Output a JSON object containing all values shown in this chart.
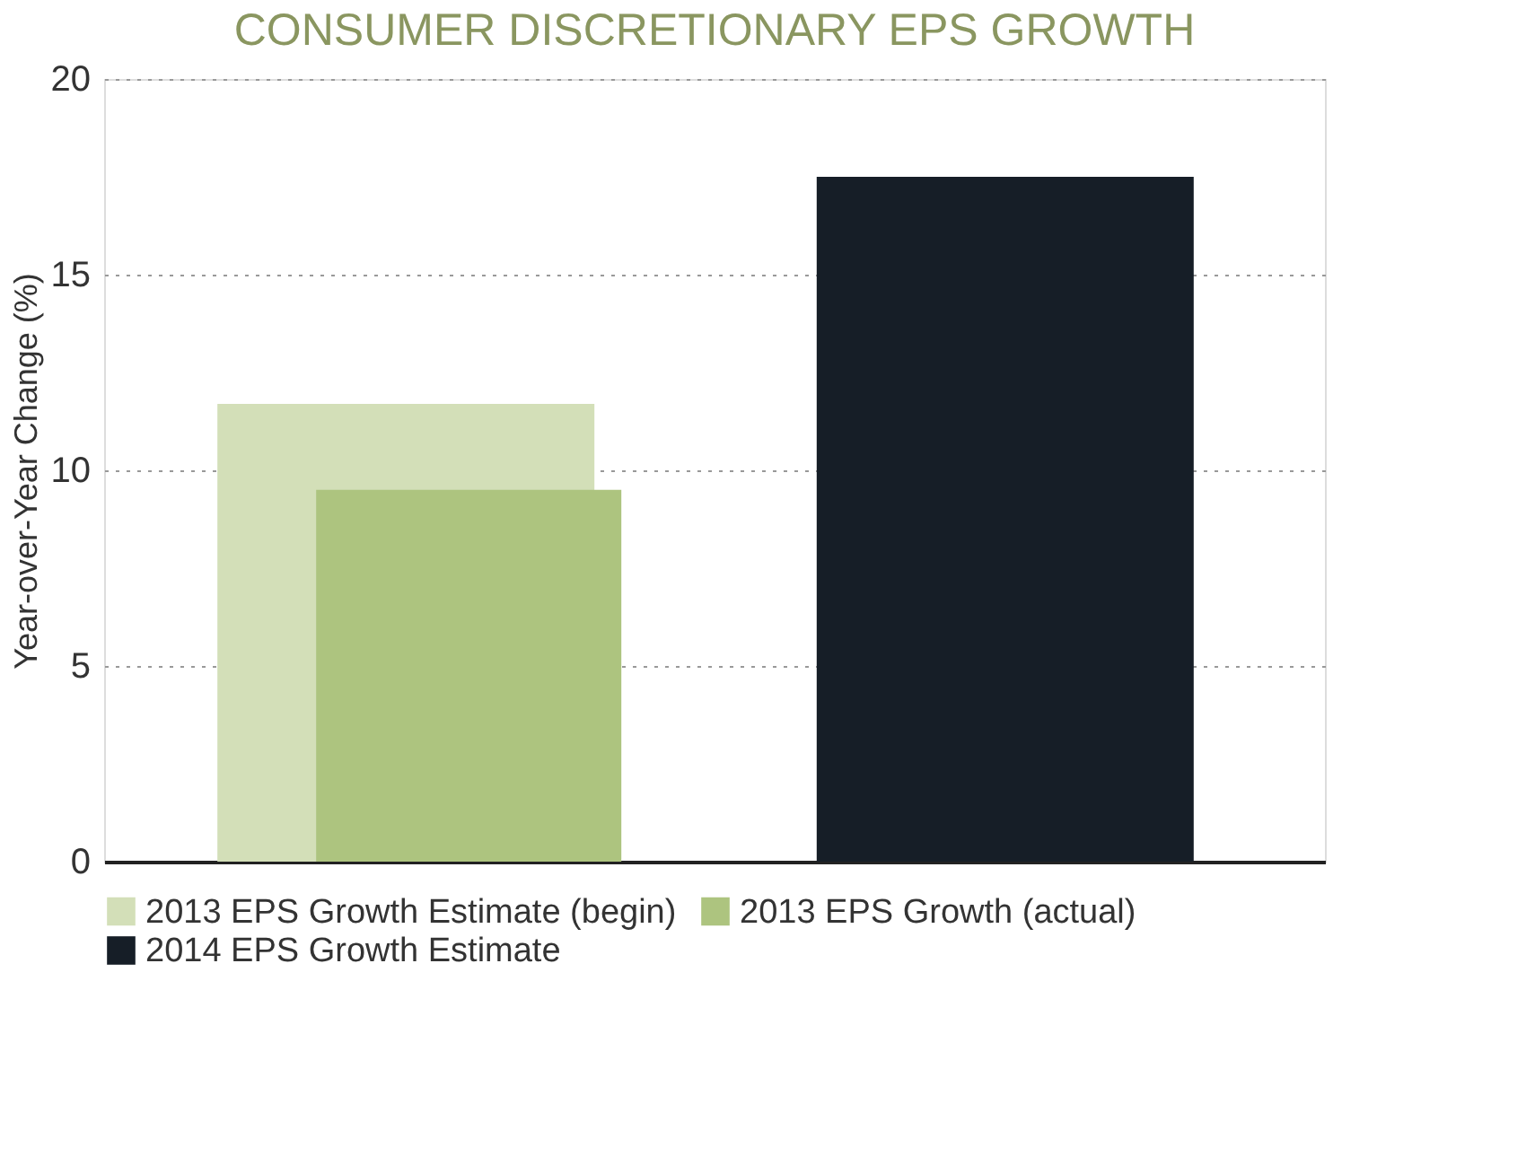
{
  "chart_data": {
    "type": "bar",
    "title": "CONSUMER DISCRETIONARY EPS GROWTH",
    "ylabel": "Year-over-Year Change (%)",
    "categories": [
      null,
      null
    ],
    "series": [
      {
        "name": "2013 EPS Growth Estimate (begin)",
        "color": "#d3dfb8",
        "values": [
          11.7,
          null
        ]
      },
      {
        "name": "2013 EPS Growth (actual)",
        "color": "#adc47f",
        "values": [
          9.5,
          null
        ]
      },
      {
        "name": "2014 EPS Growth Estimate",
        "color": "#161e27",
        "values": [
          null,
          17.5
        ]
      }
    ],
    "ylim": [
      0,
      20
    ],
    "yticks": [
      0,
      5,
      10,
      15,
      20
    ],
    "grid": "y",
    "legend": "bottom",
    "tick_labels": "y"
  }
}
